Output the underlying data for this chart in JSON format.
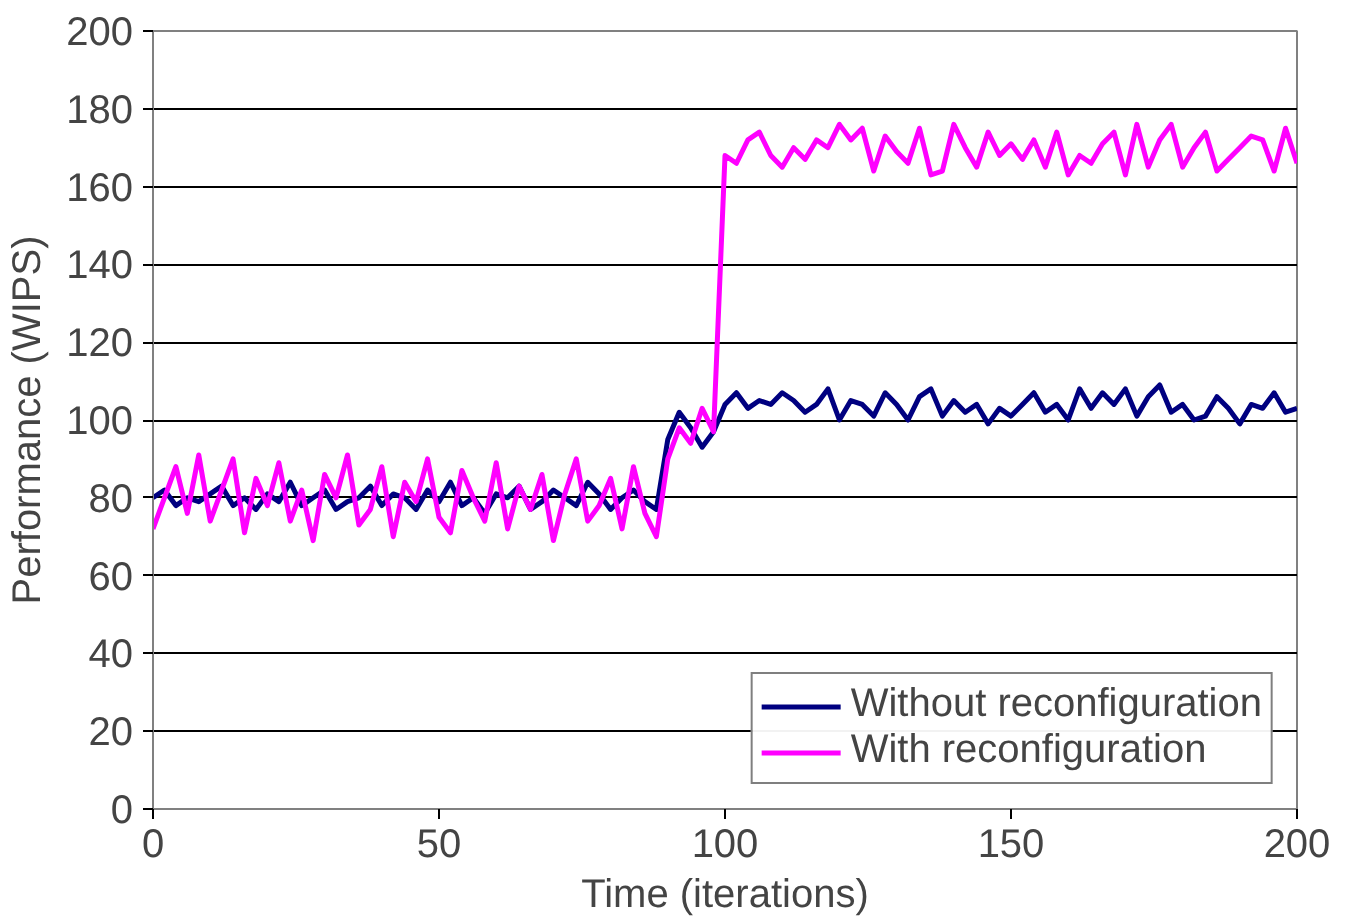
{
  "chart_data": {
    "type": "line",
    "xlabel": "Time (iterations)",
    "ylabel": "Performance (WIPS)",
    "x": [
      0,
      2,
      4,
      6,
      8,
      10,
      12,
      14,
      16,
      18,
      20,
      22,
      24,
      26,
      28,
      30,
      32,
      34,
      36,
      38,
      40,
      42,
      44,
      46,
      48,
      50,
      52,
      54,
      56,
      58,
      60,
      62,
      64,
      66,
      68,
      70,
      72,
      74,
      76,
      78,
      80,
      82,
      84,
      86,
      88,
      90,
      92,
      94,
      96,
      98,
      100,
      102,
      104,
      106,
      108,
      110,
      112,
      114,
      116,
      118,
      120,
      122,
      124,
      126,
      128,
      130,
      132,
      134,
      136,
      138,
      140,
      142,
      144,
      146,
      148,
      150,
      152,
      154,
      156,
      158,
      160,
      162,
      164,
      166,
      168,
      170,
      172,
      174,
      176,
      178,
      180,
      182,
      184,
      186,
      188,
      190,
      192,
      194,
      196,
      198,
      200
    ],
    "series": [
      {
        "name": "Without reconfiguration",
        "color": "#000080",
        "values": [
          80,
          82,
          78,
          80,
          79,
          81,
          83,
          78,
          80,
          77,
          81,
          79,
          84,
          78,
          80,
          82,
          77,
          79,
          80,
          83,
          78,
          81,
          80,
          77,
          82,
          79,
          84,
          78,
          80,
          76,
          81,
          80,
          83,
          77,
          79,
          82,
          80,
          78,
          84,
          81,
          77,
          80,
          82,
          79,
          77,
          95,
          102,
          98,
          93,
          97,
          104,
          107,
          103,
          105,
          104,
          107,
          105,
          102,
          104,
          108,
          100,
          105,
          104,
          101,
          107,
          104,
          100,
          106,
          108,
          101,
          105,
          102,
          104,
          99,
          103,
          101,
          104,
          107,
          102,
          104,
          100,
          108,
          103,
          107,
          104,
          108,
          101,
          106,
          109,
          102,
          104,
          100,
          101,
          106,
          103,
          99,
          104,
          103,
          107,
          102,
          103
        ]
      },
      {
        "name": "With reconfiguration",
        "color": "#ff00ff",
        "values": [
          72,
          80,
          88,
          76,
          91,
          74,
          82,
          90,
          71,
          85,
          78,
          89,
          74,
          82,
          69,
          86,
          80,
          91,
          73,
          77,
          88,
          70,
          84,
          79,
          90,
          75,
          71,
          87,
          80,
          74,
          89,
          72,
          83,
          77,
          86,
          69,
          81,
          90,
          74,
          78,
          85,
          72,
          88,
          76,
          70,
          90,
          98,
          94,
          103,
          97,
          168,
          166,
          172,
          174,
          168,
          165,
          170,
          167,
          172,
          170,
          176,
          172,
          175,
          164,
          173,
          169,
          166,
          175,
          163,
          164,
          176,
          170,
          165,
          174,
          168,
          171,
          167,
          172,
          165,
          174,
          163,
          168,
          166,
          171,
          174,
          163,
          176,
          165,
          172,
          176,
          165,
          170,
          174,
          164,
          167,
          170,
          173,
          172,
          164,
          175,
          166
        ]
      }
    ],
    "xlim": [
      0,
      200
    ],
    "xticks": [
      0,
      50,
      100,
      150,
      200
    ],
    "ylim": [
      0,
      200
    ],
    "yticks": [
      0,
      20,
      40,
      60,
      80,
      100,
      120,
      140,
      160,
      180,
      200
    ],
    "grid": "y",
    "legend": "bottom right",
    "marker": "none",
    "line_style": "solid"
  }
}
